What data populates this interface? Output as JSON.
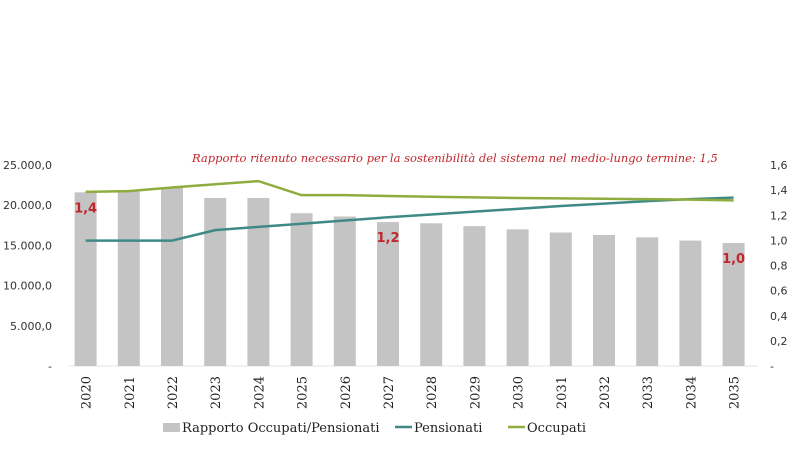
{
  "chart_data": {
    "type": "bar+line",
    "title": "",
    "annotation": "Rapporto ritenuto necessario per la sostenibilità del sistema nel medio-lungo termine: 1,5",
    "categories": [
      "2020",
      "2021",
      "2022",
      "2023",
      "2024",
      "2025",
      "2026",
      "2027",
      "2028",
      "2029",
      "2030",
      "2031",
      "2032",
      "2033",
      "2034",
      "2035"
    ],
    "series": [
      {
        "name": "Rapporto Occupati/Pensionati",
        "type": "bar",
        "axis": "left",
        "color": "#c4c4c4",
        "values": [
          21600,
          21700,
          22200,
          20900,
          20900,
          19000,
          18600,
          17900,
          17750,
          17400,
          17000,
          16600,
          16300,
          16000,
          15600,
          15300
        ]
      },
      {
        "name": "Pensionati",
        "type": "line",
        "axis": "left",
        "color": "#3f8a86",
        "values": [
          15600,
          15600,
          15600,
          16900,
          17300,
          17700,
          18100,
          18500,
          18850,
          19200,
          19550,
          19900,
          20200,
          20500,
          20750,
          20950
        ]
      },
      {
        "name": "Occupati",
        "type": "line",
        "axis": "left",
        "color": "#8fad3f",
        "values": [
          21650,
          21750,
          22200,
          22600,
          23000,
          21250,
          21250,
          21150,
          21050,
          20980,
          20900,
          20850,
          20800,
          20750,
          20700,
          20600
        ]
      }
    ],
    "data_labels": [
      {
        "category": "2020",
        "text": "1,4"
      },
      {
        "category": "2027",
        "text": "1,2"
      },
      {
        "category": "2035",
        "text": "1,0"
      }
    ],
    "left_axis": {
      "ticks": [
        "-",
        "5.000,0",
        "10.000,0",
        "15.000,0",
        "20.000,0",
        "25.000,0"
      ],
      "ylim": [
        0,
        25000
      ]
    },
    "right_axis": {
      "ticks": [
        "-",
        "0,2",
        "0,4",
        "0,6",
        "0,8",
        "1,0",
        "1,2",
        "1,4",
        "1,6"
      ],
      "ylim": [
        0,
        1.6
      ]
    },
    "xlabel": "",
    "ylabel": "",
    "grid": false,
    "legend_position": "bottom"
  },
  "legend": {
    "items": [
      {
        "label": "Rapporto Occupati/Pensionati",
        "color": "#c4c4c4",
        "kind": "box"
      },
      {
        "label": "Pensionati",
        "color": "#3f8a86",
        "kind": "line"
      },
      {
        "label": "Occupati",
        "color": "#8fad3f",
        "kind": "line"
      }
    ]
  }
}
